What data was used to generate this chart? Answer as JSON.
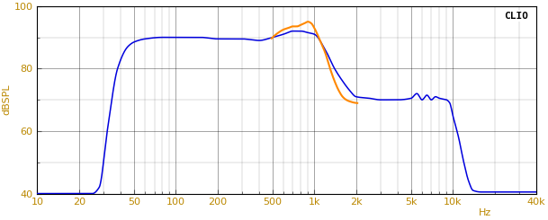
{
  "title": "CLIO",
  "ylabel": "dBSPL",
  "xmin": 10,
  "xmax": 40000,
  "ymin": 40,
  "ymax": 100,
  "yticks": [
    40,
    60,
    80,
    100
  ],
  "bg_color": "#ffffff",
  "grid_color": "#000000",
  "line_blue": "#0000dd",
  "line_orange": "#ff8800",
  "tick_color": "#bb8800",
  "ylabel_color": "#bb8800"
}
